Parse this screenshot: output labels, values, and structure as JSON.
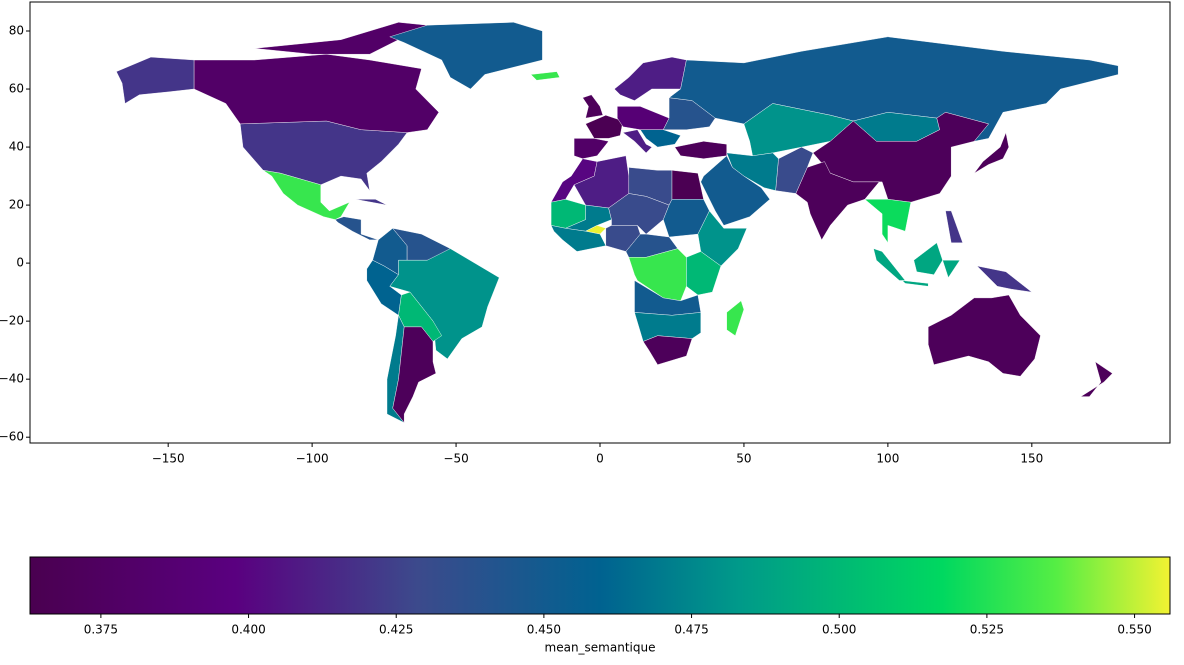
{
  "chart_data": {
    "type": "choropleth",
    "xlim": [
      -198,
      198
    ],
    "ylim": [
      -62,
      90
    ],
    "xticks": [
      {
        "value": -150,
        "label": "−150"
      },
      {
        "value": -100,
        "label": "−100"
      },
      {
        "value": -50,
        "label": "−50"
      },
      0,
      50,
      100,
      150
    ],
    "yticks": [
      {
        "value": -60,
        "label": "−60"
      },
      {
        "value": -40,
        "label": "−40"
      },
      {
        "value": -20,
        "label": "−20"
      },
      0,
      20,
      40,
      60,
      80
    ],
    "values": [
      0.42,
      0.42,
      0.38,
      0.45,
      0.53,
      0.44,
      0.45,
      0.44,
      0.46,
      0.48,
      0.5,
      0.47,
      0.37,
      0.365,
      0.38,
      0.37,
      0.39,
      0.41,
      0.41,
      0.44,
      0.46,
      0.37,
      0.45,
      0.48,
      0.47,
      0.37,
      0.37,
      0.43,
      0.47,
      0.45,
      0.52,
      0.49,
      0.42,
      0.42,
      0.37,
      0.37,
      0.37,
      0.4,
      0.41,
      0.43,
      0.365,
      0.5,
      0.47,
      0.555,
      0.43,
      0.45,
      0.47,
      0.43,
      0.44,
      0.48,
      0.53,
      0.5,
      0.45,
      0.47,
      0.37,
      0.53,
      0.53,
      0.42
    ],
    "colorbar": {
      "label": "mean_semantique",
      "clim": [
        0.363,
        0.556
      ],
      "ticks": [
        0.375,
        {
          "value": 0.4,
          "label": "0.400"
        },
        0.425,
        {
          "value": 0.45,
          "label": "0.450"
        },
        0.475,
        {
          "value": 0.5,
          "label": "0.500"
        },
        0.525,
        {
          "value": 0.55,
          "label": "0.550"
        }
      ]
    }
  }
}
